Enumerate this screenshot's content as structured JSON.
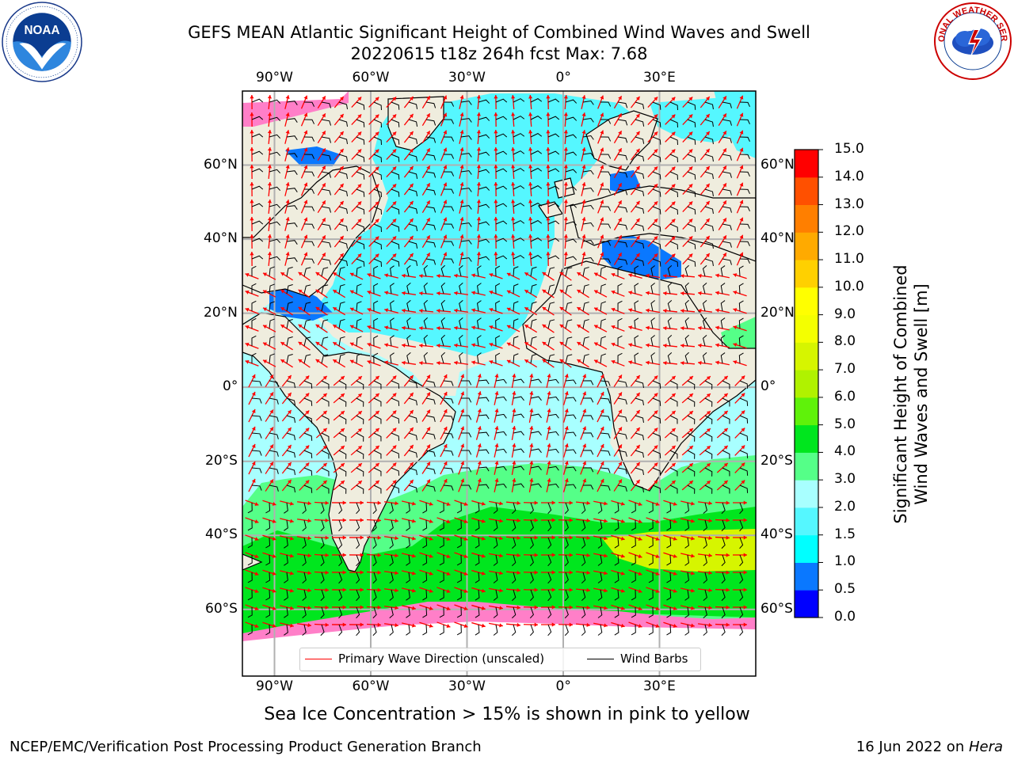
{
  "header": {
    "title_line1": "GEFS MEAN Atlantic Significant Height of Combined Wind Waves and Swell",
    "title_line2": "20220615 t18z 264h fcst   Max: 7.68"
  },
  "logos": {
    "left": {
      "name": "noaa-logo",
      "text": "NOAA",
      "ring_text": "NATIONAL OCEANIC AND ATMOSPHERIC ADMINISTRATION · U.S. DEPARTMENT OF COMMERCE"
    },
    "right": {
      "name": "nws-logo",
      "ring_text": "NATIONAL WEATHER SERVICE"
    }
  },
  "map": {
    "projection": "cylindrical",
    "extent": {
      "lon": [
        -100,
        60
      ],
      "lat": [
        -78,
        80
      ]
    },
    "lon_ticks": [
      {
        "value": -90,
        "label": "90°W"
      },
      {
        "value": -60,
        "label": "60°W"
      },
      {
        "value": -30,
        "label": "30°W"
      },
      {
        "value": 0,
        "label": "0°"
      },
      {
        "value": 30,
        "label": "30°E"
      }
    ],
    "lat_ticks": [
      {
        "value": 60,
        "label": "60°N"
      },
      {
        "value": 40,
        "label": "40°N"
      },
      {
        "value": 20,
        "label": "20°N"
      },
      {
        "value": 0,
        "label": "0°"
      },
      {
        "value": -20,
        "label": "20°S"
      },
      {
        "value": -40,
        "label": "40°S"
      },
      {
        "value": -60,
        "label": "60°S"
      }
    ],
    "colors": {
      "land": "#efedde",
      "grid": "#b0b0b0",
      "wave_arrow": "#ff0000",
      "wind_barb": "#000000"
    }
  },
  "colorbar": {
    "label_line1": "Significant Height of Combined",
    "label_line2": "Wind Waves and Swell [m]",
    "levels": [
      "0.0",
      "0.5",
      "1.0",
      "1.5",
      "2.0",
      "3.0",
      "4.0",
      "5.0",
      "6.0",
      "7.0",
      "8.0",
      "9.0",
      "10.0",
      "11.0",
      "12.0",
      "13.0",
      "14.0",
      "15.0"
    ],
    "colors": [
      "#0000ff",
      "#0a78ff",
      "#00ffff",
      "#55f7ff",
      "#a8ffff",
      "#55ff88",
      "#00e61e",
      "#5ff20a",
      "#b0f200",
      "#d6f500",
      "#f4ff00",
      "#ffff00",
      "#ffd000",
      "#ffaa00",
      "#ff7f00",
      "#ff5000",
      "#ff0000"
    ]
  },
  "legend": {
    "items": [
      {
        "label": "Primary Wave Direction (unscaled)",
        "color": "#ff0000"
      },
      {
        "label": "Wind Barbs",
        "color": "#000000"
      }
    ]
  },
  "footnote": "Sea Ice Concentration > 15% is shown in pink to yellow",
  "footer": {
    "left": "NCEP/EMC/Verification Post Processing Product Generation Branch",
    "right_date": "16 Jun 2022 on ",
    "right_host": "Hera"
  }
}
